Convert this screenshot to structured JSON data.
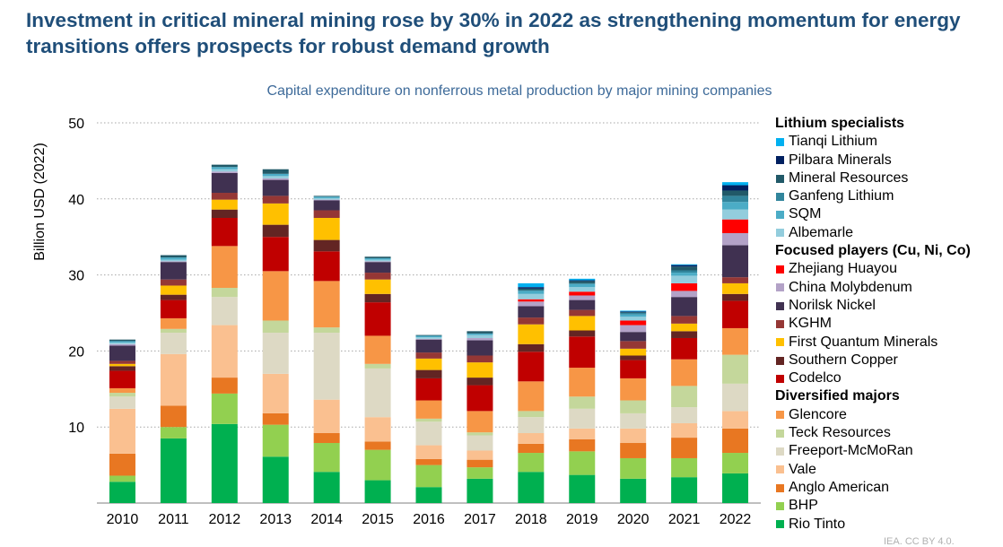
{
  "headline": "Investment in critical mineral mining rose by 30% in 2022 as strengthening momentum for energy transitions offers prospects for robust demand growth",
  "watermark": "IEA. CC BY 4.0.",
  "chart_data": {
    "type": "bar",
    "stacked": true,
    "title": "Capital expenditure on nonferrous metal production by major mining companies",
    "ylabel": "Billion USD (2022)",
    "xlabel": "",
    "ylim": [
      0,
      50
    ],
    "yticks": [
      10,
      20,
      30,
      40,
      50
    ],
    "grid": "horizontal dotted",
    "legend_position": "right",
    "categories": [
      "2010",
      "2011",
      "2012",
      "2013",
      "2014",
      "2015",
      "2016",
      "2017",
      "2018",
      "2019",
      "2020",
      "2021",
      "2022"
    ],
    "groups": [
      {
        "name": "Lithium specialists",
        "series": [
          "Tianqi Lithium",
          "Pilbara Minerals",
          "Mineral Resources",
          "Ganfeng Lithium",
          "SQM",
          "Albemarle"
        ]
      },
      {
        "name": "Focused players (Cu, Ni, Co)",
        "series": [
          "Zhejiang Huayou",
          "China Molybdenum",
          "Norilsk Nickel",
          "KGHM",
          "First Quantum Minerals",
          "Southern Copper",
          "Codelco"
        ]
      },
      {
        "name": "Diversified majors",
        "series": [
          "Glencore",
          "Teck Resources",
          "Freeport-McMoRan",
          "Vale",
          "Anglo American",
          "BHP",
          "Rio Tinto"
        ]
      }
    ],
    "series": [
      {
        "name": "Rio Tinto",
        "color": "#00b050",
        "values": [
          2.8,
          8.5,
          10.4,
          6.1,
          4.1,
          3.0,
          2.1,
          3.2,
          4.1,
          3.7,
          3.2,
          3.4,
          3.9
        ]
      },
      {
        "name": "BHP",
        "color": "#92d050",
        "values": [
          0.8,
          1.5,
          4.0,
          4.2,
          3.8,
          4.0,
          2.9,
          1.5,
          2.5,
          3.1,
          2.7,
          2.5,
          2.7
        ]
      },
      {
        "name": "Anglo American",
        "color": "#e87722",
        "values": [
          2.9,
          2.8,
          2.1,
          1.5,
          1.3,
          1.1,
          0.8,
          1.0,
          1.2,
          1.6,
          2.0,
          2.7,
          3.2
        ]
      },
      {
        "name": "Vale",
        "color": "#fac090",
        "values": [
          5.9,
          6.8,
          6.9,
          5.2,
          4.4,
          3.2,
          1.8,
          1.2,
          1.4,
          1.4,
          1.9,
          1.9,
          2.3
        ]
      },
      {
        "name": "Freeport-McMoRan",
        "color": "#ddd9c4",
        "values": [
          1.6,
          2.8,
          3.7,
          5.4,
          8.8,
          6.4,
          3.1,
          2.0,
          2.1,
          2.6,
          2.0,
          2.1,
          3.6
        ]
      },
      {
        "name": "Teck Resources",
        "color": "#c4d79b",
        "values": [
          0.5,
          0.5,
          1.2,
          1.6,
          0.7,
          0.6,
          0.4,
          0.4,
          0.8,
          1.6,
          1.7,
          2.8,
          3.8
        ]
      },
      {
        "name": "Glencore",
        "color": "#f79646",
        "values": [
          0.6,
          1.4,
          5.5,
          6.5,
          6.1,
          3.7,
          2.4,
          2.8,
          3.9,
          3.8,
          2.9,
          3.5,
          3.5
        ]
      },
      {
        "name": "Codelco",
        "color": "#c00000",
        "values": [
          2.3,
          2.4,
          3.7,
          4.5,
          3.9,
          4.4,
          2.9,
          3.4,
          3.9,
          4.1,
          2.4,
          2.8,
          3.6
        ]
      },
      {
        "name": "Southern Copper",
        "color": "#632523",
        "values": [
          0.6,
          0.7,
          1.1,
          1.6,
          1.5,
          1.1,
          1.1,
          1.0,
          1.0,
          0.8,
          0.6,
          0.9,
          0.9
        ]
      },
      {
        "name": "First Quantum Minerals",
        "color": "#ffc000",
        "values": [
          0.3,
          1.2,
          1.3,
          2.8,
          2.9,
          1.9,
          1.5,
          2.0,
          2.6,
          1.9,
          0.9,
          1.0,
          1.4
        ]
      },
      {
        "name": "KGHM",
        "color": "#953735",
        "values": [
          0.4,
          0.8,
          0.9,
          1.0,
          1.0,
          0.9,
          0.8,
          0.9,
          0.9,
          0.8,
          1.0,
          1.0,
          0.8
        ]
      },
      {
        "name": "Norilsk Nickel",
        "color": "#403151",
        "values": [
          2.0,
          2.3,
          2.6,
          2.1,
          1.3,
          1.4,
          1.7,
          2.0,
          1.5,
          1.3,
          1.2,
          2.5,
          4.2
        ]
      },
      {
        "name": "China Molybdenum",
        "color": "#b3a2c7",
        "values": [
          0.2,
          0.1,
          0.2,
          0.2,
          0.1,
          0.1,
          0.1,
          0.3,
          0.6,
          0.6,
          0.9,
          0.8,
          1.6
        ]
      },
      {
        "name": "Zhejiang Huayou",
        "color": "#ff0000",
        "values": [
          0,
          0,
          0,
          0,
          0,
          0,
          0,
          0,
          0.3,
          0.5,
          0.6,
          1.0,
          1.8
        ]
      },
      {
        "name": "Albemarle",
        "color": "#93cddd",
        "values": [
          0.2,
          0.2,
          0.3,
          0.3,
          0.2,
          0.2,
          0.2,
          0.4,
          0.7,
          0.6,
          0.5,
          1.0,
          1.3
        ]
      },
      {
        "name": "SQM",
        "color": "#4bacc6",
        "values": [
          0.2,
          0.3,
          0.3,
          0.3,
          0.2,
          0.2,
          0.2,
          0.2,
          0.4,
          0.4,
          0.3,
          0.4,
          1.0
        ]
      },
      {
        "name": "Ganfeng Lithium",
        "color": "#31859c",
        "values": [
          0,
          0,
          0,
          0,
          0,
          0,
          0,
          0,
          0.1,
          0.1,
          0.2,
          0.3,
          0.8
        ]
      },
      {
        "name": "Mineral Resources",
        "color": "#215968",
        "values": [
          0.2,
          0.3,
          0.3,
          0.6,
          0.1,
          0.2,
          0.1,
          0.3,
          0.2,
          0.3,
          0.1,
          0.5,
          0.7
        ]
      },
      {
        "name": "Pilbara Minerals",
        "color": "#002060",
        "values": [
          0,
          0,
          0,
          0,
          0,
          0,
          0,
          0,
          0.2,
          0.1,
          0.1,
          0.2,
          0.7
        ]
      },
      {
        "name": "Tianqi Lithium",
        "color": "#00b0f0",
        "values": [
          0,
          0,
          0,
          0,
          0,
          0,
          0,
          0,
          0.5,
          0.2,
          0.1,
          0.1,
          0.4
        ]
      }
    ],
    "legend_order": [
      "Tianqi Lithium",
      "Pilbara Minerals",
      "Mineral Resources",
      "Ganfeng Lithium",
      "SQM",
      "Albemarle",
      "Zhejiang Huayou",
      "China Molybdenum",
      "Norilsk Nickel",
      "KGHM",
      "First Quantum Minerals",
      "Southern Copper",
      "Codelco",
      "Glencore",
      "Teck Resources",
      "Freeport-McMoRan",
      "Vale",
      "Anglo American",
      "BHP",
      "Rio Tinto"
    ]
  }
}
